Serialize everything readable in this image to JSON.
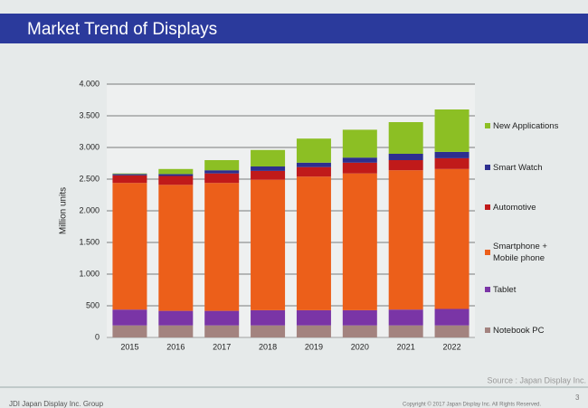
{
  "chart_data": {
    "type": "stacked_bar",
    "title": "Market Trend of Displays",
    "y_label": "Million units",
    "source": "Source : Japan Display Inc.",
    "footer_left": "JDI Japan Display Inc. Group",
    "footer_right": "Copyright © 2017 Japan Display Inc. All Rights Reserved.",
    "page_number": "3",
    "categories": [
      "2015",
      "2016",
      "2017",
      "2018",
      "2019",
      "2020",
      "2021",
      "2022"
    ],
    "series": [
      {
        "name": "Notebook PC",
        "color": "#a3837f",
        "values": [
          190,
          190,
          190,
          190,
          190,
          190,
          190,
          190
        ]
      },
      {
        "name": "Tablet",
        "color": "#7a35a6",
        "values": [
          250,
          230,
          230,
          240,
          240,
          240,
          250,
          260
        ]
      },
      {
        "name": "Smartphone + Mobile phone",
        "color": "#ec5f1a",
        "values": [
          2000,
          1990,
          2020,
          2060,
          2110,
          2160,
          2200,
          2210
        ]
      },
      {
        "name": "Automotive",
        "color": "#c01a1a",
        "values": [
          120,
          140,
          150,
          140,
          150,
          170,
          160,
          170
        ]
      },
      {
        "name": "Smart Watch",
        "color": "#2d2f8f",
        "values": [
          20,
          30,
          50,
          70,
          70,
          80,
          100,
          100
        ]
      },
      {
        "name": "New Applications",
        "color": "#8cbf24",
        "values": [
          10,
          80,
          160,
          260,
          380,
          440,
          500,
          670
        ]
      }
    ],
    "ylim": [
      0,
      4000
    ],
    "yticks": [
      0,
      500,
      {
        "value": 1000,
        "label": "1.000"
      },
      {
        "value": 1500,
        "label": "1.500"
      },
      {
        "value": 2000,
        "label": "2.000"
      },
      {
        "value": 2500,
        "label": "2.500"
      },
      {
        "value": 3000,
        "label": "3.000"
      },
      {
        "value": 3500,
        "label": "3.500"
      },
      {
        "value": 4000,
        "label": "4.000"
      }
    ],
    "grid": true
  }
}
